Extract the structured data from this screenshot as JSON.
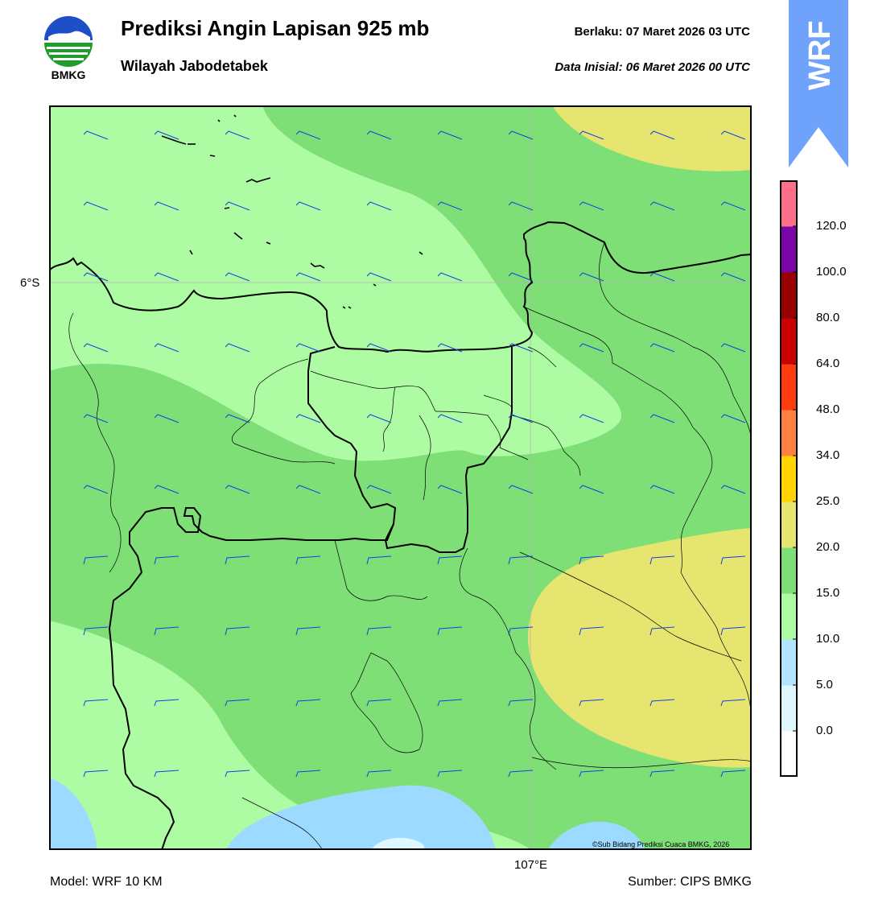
{
  "header": {
    "title": "Prediksi Angin Lapisan 925 mb",
    "subtitle": "Wilayah Jabodetabek",
    "valid": "Berlaku:  07 Maret 2026 03 UTC",
    "init": "Data Inisial:  06 Maret 2026 00 UTC"
  },
  "logo": {
    "text": "BMKG"
  },
  "badge": {
    "text": "WRF",
    "color": "#6ea2fb"
  },
  "map": {
    "lat_label": "6°S",
    "lon_label": "107°E",
    "credit": "©Sub Bidang Prediksi Cuaca BMKG, 2026",
    "barb_color": "#1a3fe6",
    "fill_colors": [
      "#9ddaff",
      "#adfca3",
      "#7fdf77",
      "#e6e56f"
    ]
  },
  "footer": {
    "model": "Model: WRF 10 KM",
    "source": "Sumber: CIPS BMKG"
  },
  "colorbar": {
    "colors": [
      "#ffffff",
      "#dff8ff",
      "#b0e4ff",
      "#adfca3",
      "#7fdf77",
      "#e6e56f",
      "#ffd400",
      "#ff8040",
      "#ff3c10",
      "#cc0000",
      "#990000",
      "#7a04a8",
      "#ff6e8a"
    ],
    "ticks": [
      "0.0",
      "5.0",
      "10.0",
      "15.0",
      "20.0",
      "25.0",
      "34.0",
      "48.0",
      "64.0",
      "80.0",
      "100.0",
      "120.0"
    ]
  }
}
